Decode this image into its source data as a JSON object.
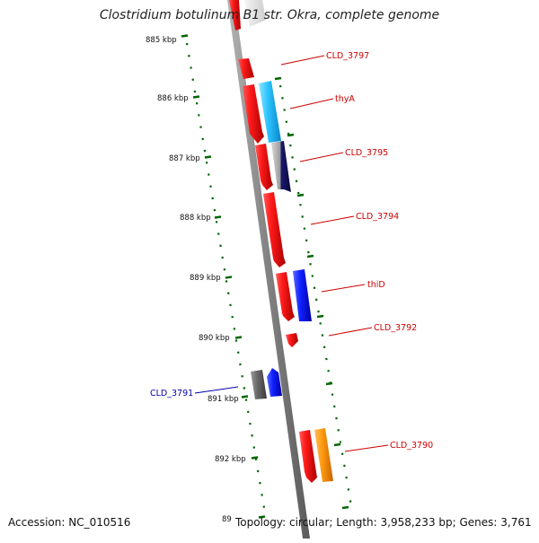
{
  "title": "Clostridium botulinum B1 str. Okra, complete genome",
  "accession": "Accession: NC_010516",
  "topology": "Topology: circular; Length: 3,958,233 bp; Genes: 3,761",
  "ruler_labels": [
    "885 kbp",
    "886 kbp",
    "887 kbp",
    "888 kbp",
    "889 kbp",
    "890 kbp",
    "891 kbp",
    "892 kbp",
    "89"
  ],
  "gene_labels": [
    "CLD_3797",
    "thyA",
    "CLD_3795",
    "CLD_3794",
    "thiD",
    "CLD_3792",
    "CLD_3791",
    "CLD_3790"
  ],
  "colors": {
    "label_red": "#cc0000",
    "label_blue": "#0000aa",
    "ruler_green": "#006600",
    "backbone": "#8a8a8a"
  }
}
